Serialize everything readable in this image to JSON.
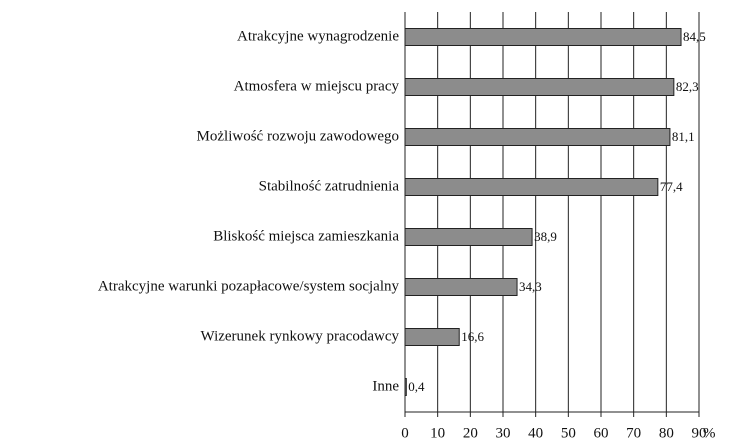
{
  "chart_data": {
    "type": "bar",
    "orientation": "horizontal",
    "categories": [
      "Atrakcyjne wynagrodzenie",
      "Atmosfera w miejscu pracy",
      "Możliwość rozwoju zawodowego",
      "Stabilność zatrudnienia",
      "Bliskość miejsca zamieszkania",
      "Atrakcyjne warunki pozapłacowe/system socjalny",
      "Wizerunek rynkowy pracodawcy",
      "Inne"
    ],
    "values": [
      84.5,
      82.3,
      81.1,
      77.4,
      38.9,
      34.3,
      16.6,
      0.4
    ],
    "value_labels": [
      "84,5",
      "82,3",
      "81,1",
      "77,4",
      "38,9",
      "34,3",
      "16,6",
      "0,4"
    ],
    "color": "#8c8c8c",
    "xlabel": "%",
    "xlim": [
      0,
      90
    ],
    "xticks": [
      0,
      10,
      20,
      30,
      40,
      50,
      60,
      70,
      80,
      90
    ],
    "grid": true
  }
}
